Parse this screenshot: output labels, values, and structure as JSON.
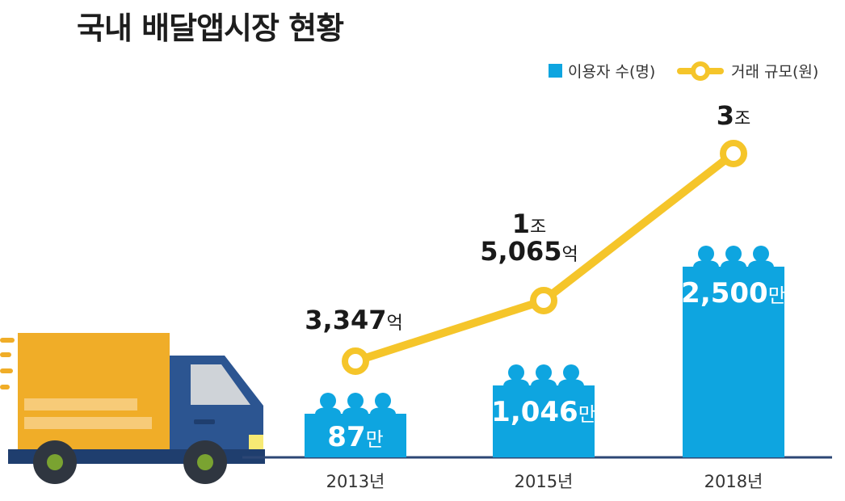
{
  "title": "국내 배달앱시장 현황",
  "colors": {
    "bar": "#0ea5e0",
    "line": "#f5c52a",
    "line_point_fill": "#ffffff",
    "baseline": "#2c4775",
    "truck_cargo": "#f0ad28",
    "truck_cab": "#2c5591",
    "truck_cab_dark": "#1f3e6e",
    "truck_window": "#cfd3d8",
    "truck_light": "#f7ea74",
    "wheel": "#2f3640",
    "wheel_hub": "#7aa331"
  },
  "legend": [
    {
      "label": "이용자 수(명)",
      "icon": "blue-square-icon"
    },
    {
      "label": "거래 규모(원)",
      "icon": "yellow-line-circle-icon"
    }
  ],
  "chart_data": {
    "type": "bar",
    "categories": [
      "2013년",
      "2015년",
      "2018년"
    ],
    "series": [
      {
        "name": "이용자 수(명)",
        "type": "bar",
        "values": [
          870000,
          10460000,
          25000000
        ],
        "labels": [
          {
            "number": "87",
            "unit": "만"
          },
          {
            "number": "1,046",
            "unit": "만"
          },
          {
            "number": "2,500",
            "unit": "만"
          }
        ]
      },
      {
        "name": "거래 규모(원)",
        "type": "line",
        "values": [
          334700000000,
          1506500000000,
          3000000000000
        ],
        "labels": [
          {
            "lines": [
              {
                "number": "3,347",
                "unit": "억"
              }
            ]
          },
          {
            "lines": [
              {
                "number": "1",
                "unit": "조"
              },
              {
                "number": "5,065",
                "unit": "억"
              }
            ]
          },
          {
            "lines": [
              {
                "number": "3",
                "unit": "조"
              }
            ]
          }
        ]
      }
    ],
    "grid": false,
    "legend_position": "top-right"
  }
}
